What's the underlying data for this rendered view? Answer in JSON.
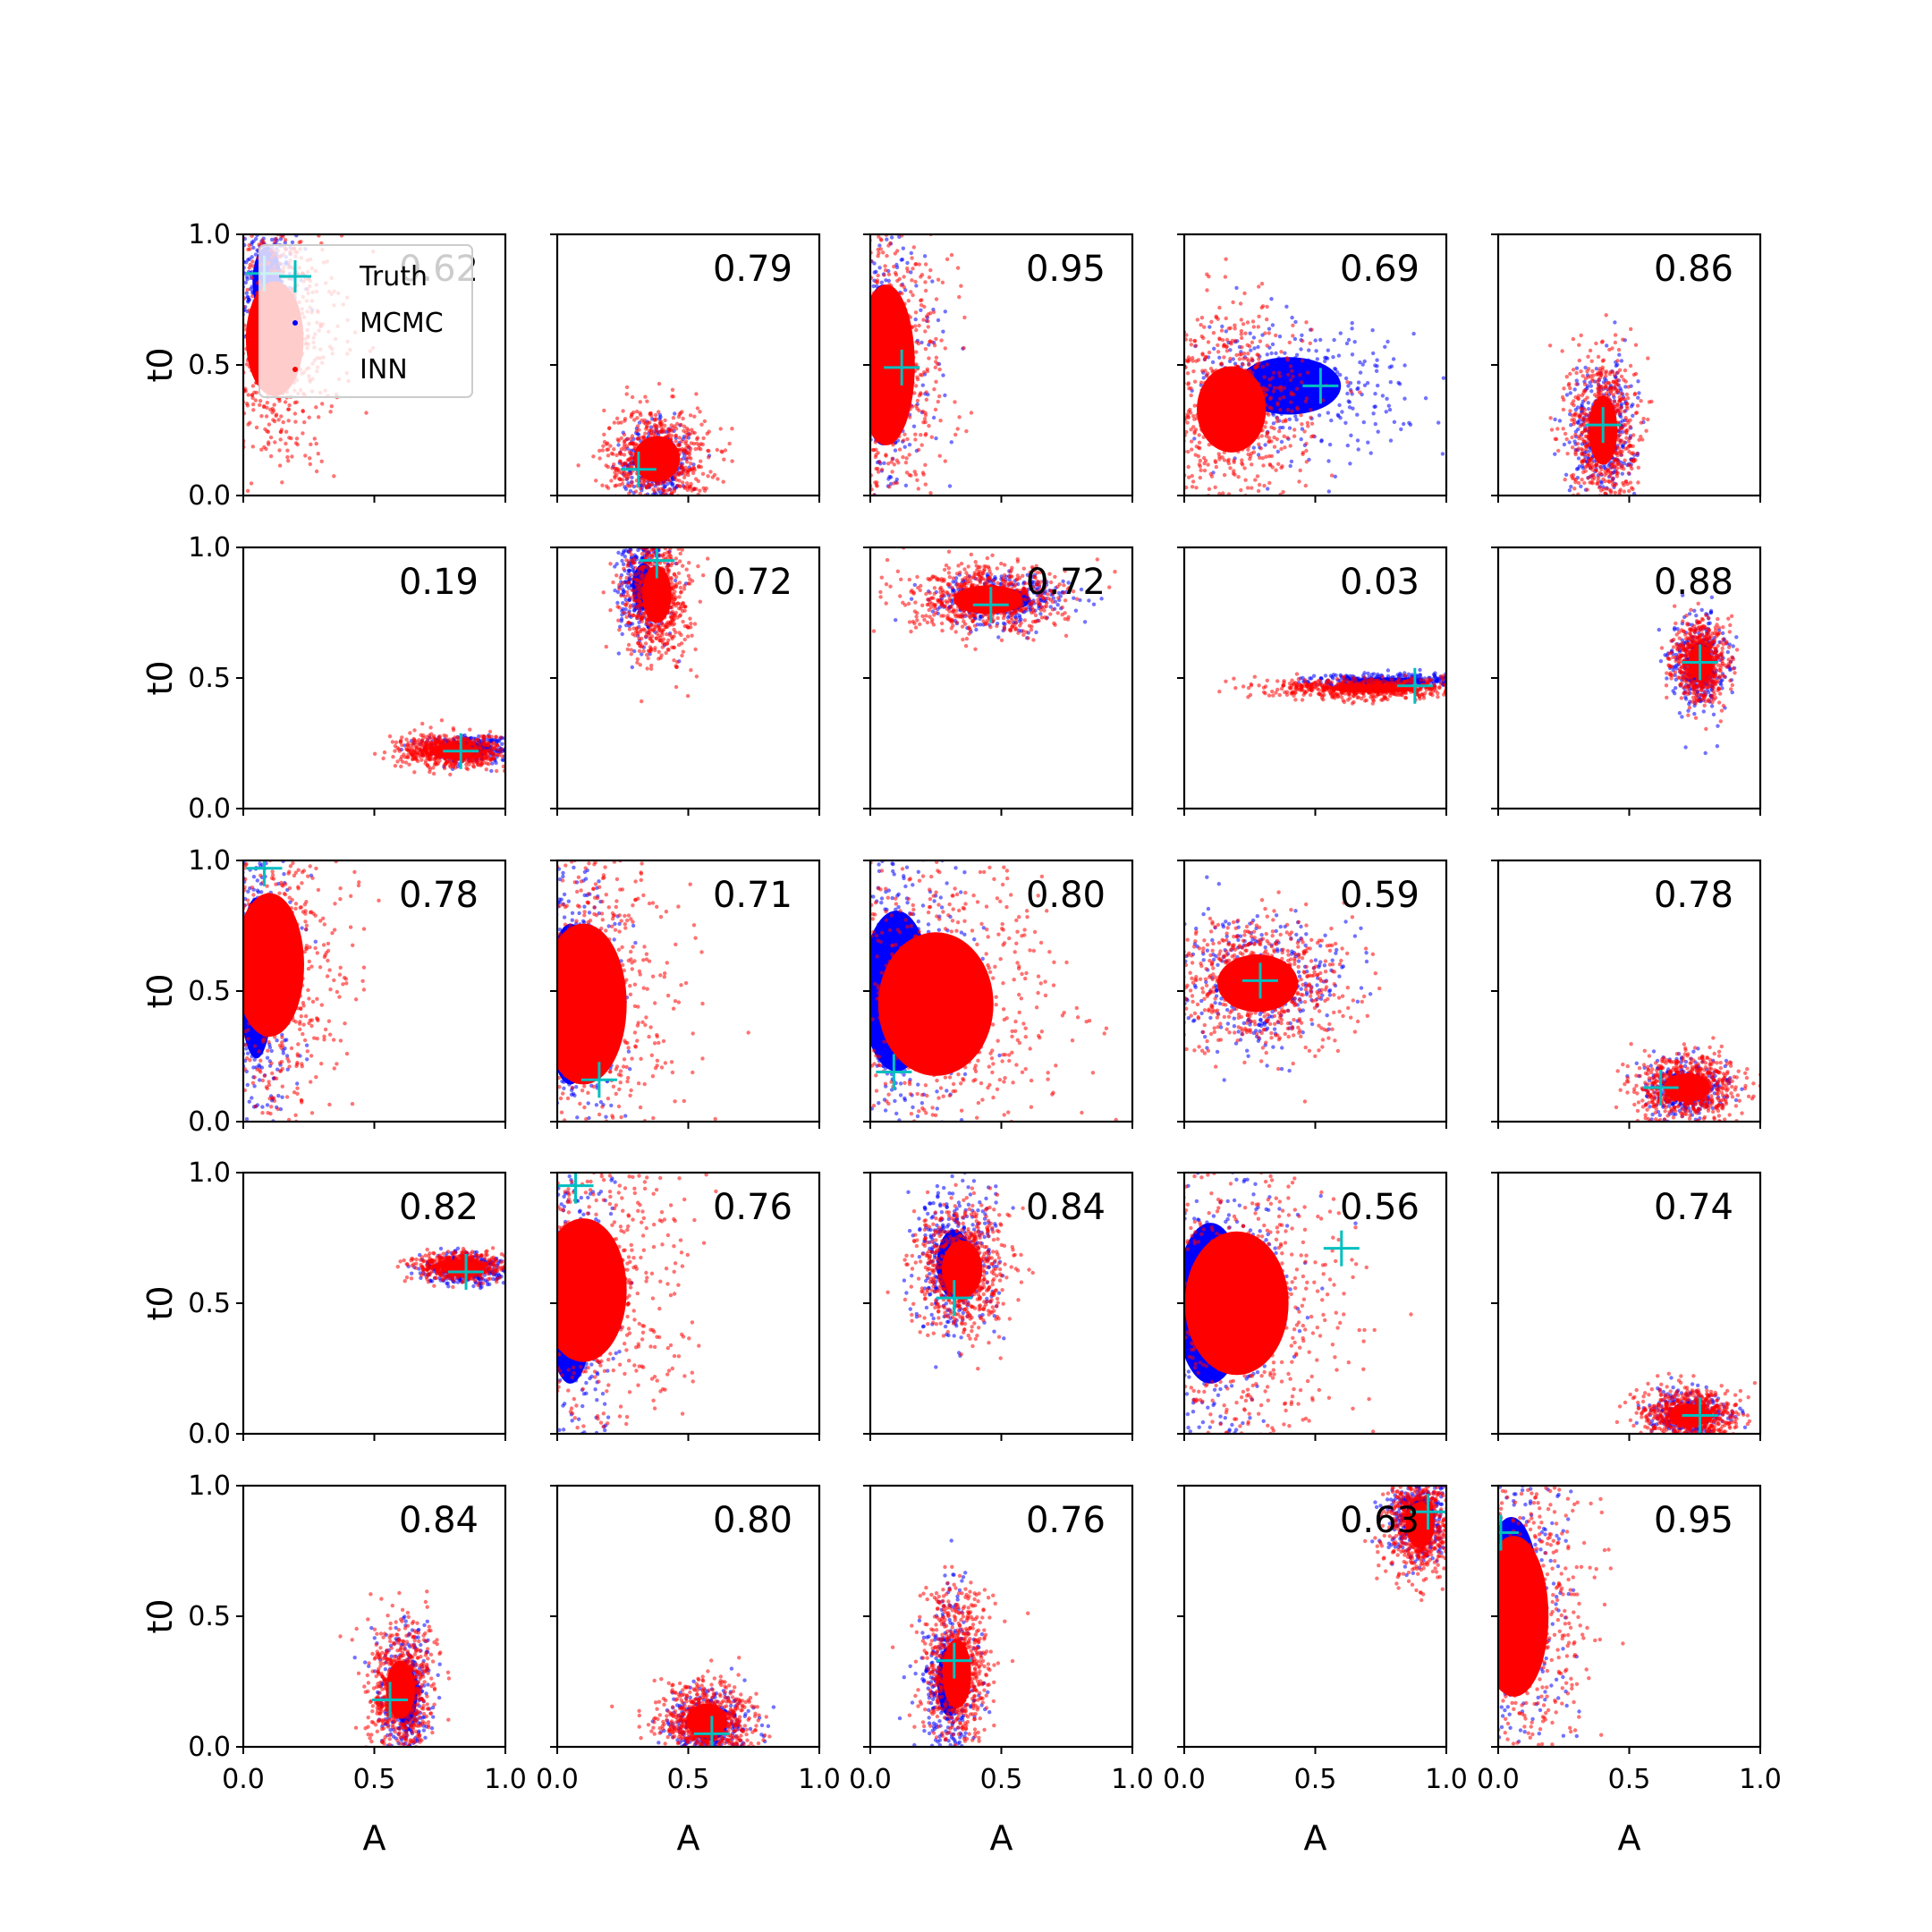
{
  "figure": {
    "note": ""
  },
  "legend": {
    "entries": [
      {
        "label": "Truth",
        "color": "#00bfbf",
        "marker": "plus"
      },
      {
        "label": "MCMC",
        "color": "#0000ff",
        "marker": "dot"
      },
      {
        "label": "INN",
        "color": "#ff0000",
        "marker": "dot"
      }
    ]
  },
  "colors": {
    "truth": "#00bfbf",
    "mcmc": "#0000ff",
    "inn": "#ff0000"
  },
  "chart_data": {
    "type": "scatter",
    "grid": false,
    "rows": 5,
    "cols": 5,
    "xlabel": "A",
    "ylabel": "t0",
    "xlim": [
      0,
      1
    ],
    "ylim": [
      0,
      1
    ],
    "xticks": [
      "0.0",
      "0.5",
      "1.0"
    ],
    "yticks": [
      "0.0",
      "0.5",
      "1.0"
    ],
    "series_names": [
      "Truth",
      "MCMC",
      "INN"
    ],
    "panels": [
      {
        "value": "0.62",
        "truth": [
          0.08,
          0.85
        ],
        "mcmc": {
          "cx": 0.09,
          "cy": 0.82,
          "sx": 0.05,
          "sy": 0.12
        },
        "inn": {
          "cx": 0.12,
          "cy": 0.6,
          "sx": 0.1,
          "sy": 0.2
        }
      },
      {
        "value": "0.79",
        "truth": [
          0.31,
          0.1
        ],
        "mcmc": {
          "cx": 0.38,
          "cy": 0.12,
          "sx": 0.05,
          "sy": 0.06
        },
        "inn": {
          "cx": 0.38,
          "cy": 0.14,
          "sx": 0.08,
          "sy": 0.08
        }
      },
      {
        "value": "0.95",
        "truth": [
          0.12,
          0.49
        ],
        "mcmc": {
          "cx": 0.05,
          "cy": 0.5,
          "sx": 0.08,
          "sy": 0.28
        },
        "inn": {
          "cx": 0.06,
          "cy": 0.5,
          "sx": 0.1,
          "sy": 0.28
        }
      },
      {
        "value": "0.69",
        "truth": [
          0.52,
          0.42
        ],
        "mcmc": {
          "cx": 0.4,
          "cy": 0.42,
          "sx": 0.18,
          "sy": 0.1
        },
        "inn": {
          "cx": 0.18,
          "cy": 0.33,
          "sx": 0.12,
          "sy": 0.15
        }
      },
      {
        "value": "0.86",
        "truth": [
          0.4,
          0.27
        ],
        "mcmc": {
          "cx": 0.4,
          "cy": 0.25,
          "sx": 0.05,
          "sy": 0.1
        },
        "inn": {
          "cx": 0.4,
          "cy": 0.25,
          "sx": 0.05,
          "sy": 0.12
        }
      },
      {
        "value": "0.19",
        "truth": [
          0.83,
          0.22
        ],
        "mcmc": {
          "cx": 0.86,
          "cy": 0.23,
          "sx": 0.07,
          "sy": 0.02
        },
        "inn": {
          "cx": 0.8,
          "cy": 0.22,
          "sx": 0.08,
          "sy": 0.025
        }
      },
      {
        "value": "0.72",
        "truth": [
          0.38,
          0.95
        ],
        "mcmc": {
          "cx": 0.33,
          "cy": 0.85,
          "sx": 0.04,
          "sy": 0.08
        },
        "inn": {
          "cx": 0.38,
          "cy": 0.82,
          "sx": 0.05,
          "sy": 0.1
        }
      },
      {
        "value": "0.72",
        "truth": [
          0.46,
          0.78
        ],
        "mcmc": {
          "cx": 0.5,
          "cy": 0.8,
          "sx": 0.1,
          "sy": 0.04
        },
        "inn": {
          "cx": 0.45,
          "cy": 0.8,
          "sx": 0.12,
          "sy": 0.05
        }
      },
      {
        "value": "0.03",
        "truth": [
          0.88,
          0.47
        ],
        "mcmc": {
          "cx": 0.78,
          "cy": 0.49,
          "sx": 0.12,
          "sy": 0.01
        },
        "inn": {
          "cx": 0.72,
          "cy": 0.46,
          "sx": 0.15,
          "sy": 0.015
        }
      },
      {
        "value": "0.88",
        "truth": [
          0.77,
          0.56
        ],
        "mcmc": {
          "cx": 0.77,
          "cy": 0.56,
          "sx": 0.04,
          "sy": 0.07
        },
        "inn": {
          "cx": 0.77,
          "cy": 0.56,
          "sx": 0.04,
          "sy": 0.06
        }
      },
      {
        "value": "0.78",
        "truth": [
          0.08,
          0.97
        ],
        "mcmc": {
          "cx": 0.05,
          "cy": 0.55,
          "sx": 0.06,
          "sy": 0.28
        },
        "inn": {
          "cx": 0.1,
          "cy": 0.6,
          "sx": 0.12,
          "sy": 0.25
        }
      },
      {
        "value": "0.71",
        "truth": [
          0.16,
          0.16
        ],
        "mcmc": {
          "cx": 0.05,
          "cy": 0.45,
          "sx": 0.08,
          "sy": 0.28
        },
        "inn": {
          "cx": 0.1,
          "cy": 0.45,
          "sx": 0.15,
          "sy": 0.28
        }
      },
      {
        "value": "0.80",
        "truth": [
          0.09,
          0.19
        ],
        "mcmc": {
          "cx": 0.1,
          "cy": 0.5,
          "sx": 0.12,
          "sy": 0.28
        },
        "inn": {
          "cx": 0.25,
          "cy": 0.45,
          "sx": 0.2,
          "sy": 0.25
        }
      },
      {
        "value": "0.59",
        "truth": [
          0.29,
          0.54
        ],
        "mcmc": {
          "cx": 0.28,
          "cy": 0.53,
          "sx": 0.12,
          "sy": 0.1
        },
        "inn": {
          "cx": 0.28,
          "cy": 0.53,
          "sx": 0.14,
          "sy": 0.1
        }
      },
      {
        "value": "0.78",
        "truth": [
          0.62,
          0.13
        ],
        "mcmc": {
          "cx": 0.72,
          "cy": 0.13,
          "sx": 0.06,
          "sy": 0.04
        },
        "inn": {
          "cx": 0.72,
          "cy": 0.13,
          "sx": 0.08,
          "sy": 0.05
        }
      },
      {
        "value": "0.82",
        "truth": [
          0.85,
          0.62
        ],
        "mcmc": {
          "cx": 0.84,
          "cy": 0.63,
          "sx": 0.06,
          "sy": 0.025
        },
        "inn": {
          "cx": 0.82,
          "cy": 0.64,
          "sx": 0.06,
          "sy": 0.02
        }
      },
      {
        "value": "0.76",
        "truth": [
          0.07,
          0.95
        ],
        "mcmc": {
          "cx": 0.05,
          "cy": 0.5,
          "sx": 0.08,
          "sy": 0.28
        },
        "inn": {
          "cx": 0.1,
          "cy": 0.55,
          "sx": 0.15,
          "sy": 0.25
        }
      },
      {
        "value": "0.84",
        "truth": [
          0.32,
          0.52
        ],
        "mcmc": {
          "cx": 0.32,
          "cy": 0.65,
          "sx": 0.06,
          "sy": 0.12
        },
        "inn": {
          "cx": 0.35,
          "cy": 0.63,
          "sx": 0.07,
          "sy": 0.1
        }
      },
      {
        "value": "0.56",
        "truth": [
          0.6,
          0.71
        ],
        "mcmc": {
          "cx": 0.1,
          "cy": 0.5,
          "sx": 0.12,
          "sy": 0.28
        },
        "inn": {
          "cx": 0.2,
          "cy": 0.5,
          "sx": 0.18,
          "sy": 0.25
        }
      },
      {
        "value": "0.74",
        "truth": [
          0.77,
          0.07
        ],
        "mcmc": {
          "cx": 0.73,
          "cy": 0.07,
          "sx": 0.06,
          "sy": 0.035
        },
        "inn": {
          "cx": 0.73,
          "cy": 0.07,
          "sx": 0.07,
          "sy": 0.04
        }
      },
      {
        "value": "0.84",
        "truth": [
          0.56,
          0.18
        ],
        "mcmc": {
          "cx": 0.62,
          "cy": 0.2,
          "sx": 0.04,
          "sy": 0.1
        },
        "inn": {
          "cx": 0.6,
          "cy": 0.22,
          "sx": 0.05,
          "sy": 0.1
        }
      },
      {
        "value": "0.80",
        "truth": [
          0.59,
          0.05
        ],
        "mcmc": {
          "cx": 0.58,
          "cy": 0.08,
          "sx": 0.06,
          "sy": 0.05
        },
        "inn": {
          "cx": 0.57,
          "cy": 0.1,
          "sx": 0.07,
          "sy": 0.06
        }
      },
      {
        "value": "0.76",
        "truth": [
          0.32,
          0.33
        ],
        "mcmc": {
          "cx": 0.3,
          "cy": 0.25,
          "sx": 0.04,
          "sy": 0.12
        },
        "inn": {
          "cx": 0.33,
          "cy": 0.28,
          "sx": 0.05,
          "sy": 0.12
        }
      },
      {
        "value": "0.63",
        "truth": [
          0.93,
          0.9
        ],
        "mcmc": {
          "cx": 0.9,
          "cy": 0.88,
          "sx": 0.05,
          "sy": 0.07
        },
        "inn": {
          "cx": 0.9,
          "cy": 0.85,
          "sx": 0.05,
          "sy": 0.08
        }
      },
      {
        "value": "0.95",
        "truth": [
          0.01,
          0.82
        ],
        "mcmc": {
          "cx": 0.05,
          "cy": 0.55,
          "sx": 0.1,
          "sy": 0.3
        },
        "inn": {
          "cx": 0.06,
          "cy": 0.5,
          "sx": 0.12,
          "sy": 0.28
        }
      }
    ]
  }
}
